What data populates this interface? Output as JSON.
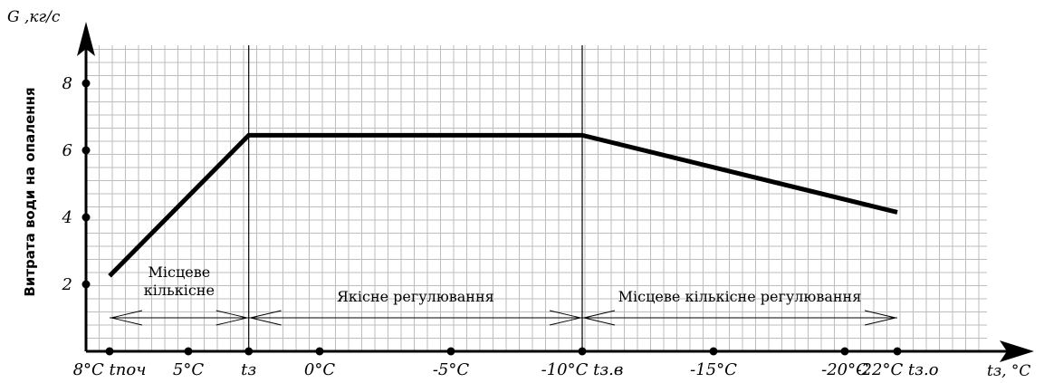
{
  "chart_data": {
    "type": "line",
    "title": "",
    "xlabel": "tз, °C",
    "ylabel": "Витрата води на опалення",
    "y_unit_label": "G ,кг/с",
    "grid": true,
    "x_ticks": [
      {
        "value": 8,
        "label": "8°C tпоч"
      },
      {
        "value": 5,
        "label": "5°C"
      },
      {
        "value": 2.7,
        "label": "tз"
      },
      {
        "value": 0,
        "label": "0°C"
      },
      {
        "value": -5,
        "label": "-5°C"
      },
      {
        "value": -10,
        "label": "-10°C tз.в"
      },
      {
        "value": -15,
        "label": "-15°C"
      },
      {
        "value": -20,
        "label": "-20°C"
      },
      {
        "value": -22,
        "label": "-22°C tз.о"
      }
    ],
    "y_ticks": [
      {
        "value": 2,
        "label": "2"
      },
      {
        "value": 4,
        "label": "4"
      },
      {
        "value": 6,
        "label": "6"
      },
      {
        "value": 8,
        "label": "8"
      }
    ],
    "series": [
      {
        "x": [
          8,
          2.7,
          -10,
          -22
        ],
        "y": [
          2.25,
          6.45,
          6.45,
          4.15
        ]
      }
    ],
    "vlines": [
      2.7,
      -10
    ],
    "zones": [
      {
        "label": "Місцеве кількісне",
        "from": 8,
        "to": 2.7
      },
      {
        "label": "Якісне регулювання",
        "from": 2.7,
        "to": -10
      },
      {
        "label": "Місцеве кількісне регулювання",
        "from": -10,
        "to": -22
      }
    ],
    "zone_arrow_y": 1.0
  }
}
